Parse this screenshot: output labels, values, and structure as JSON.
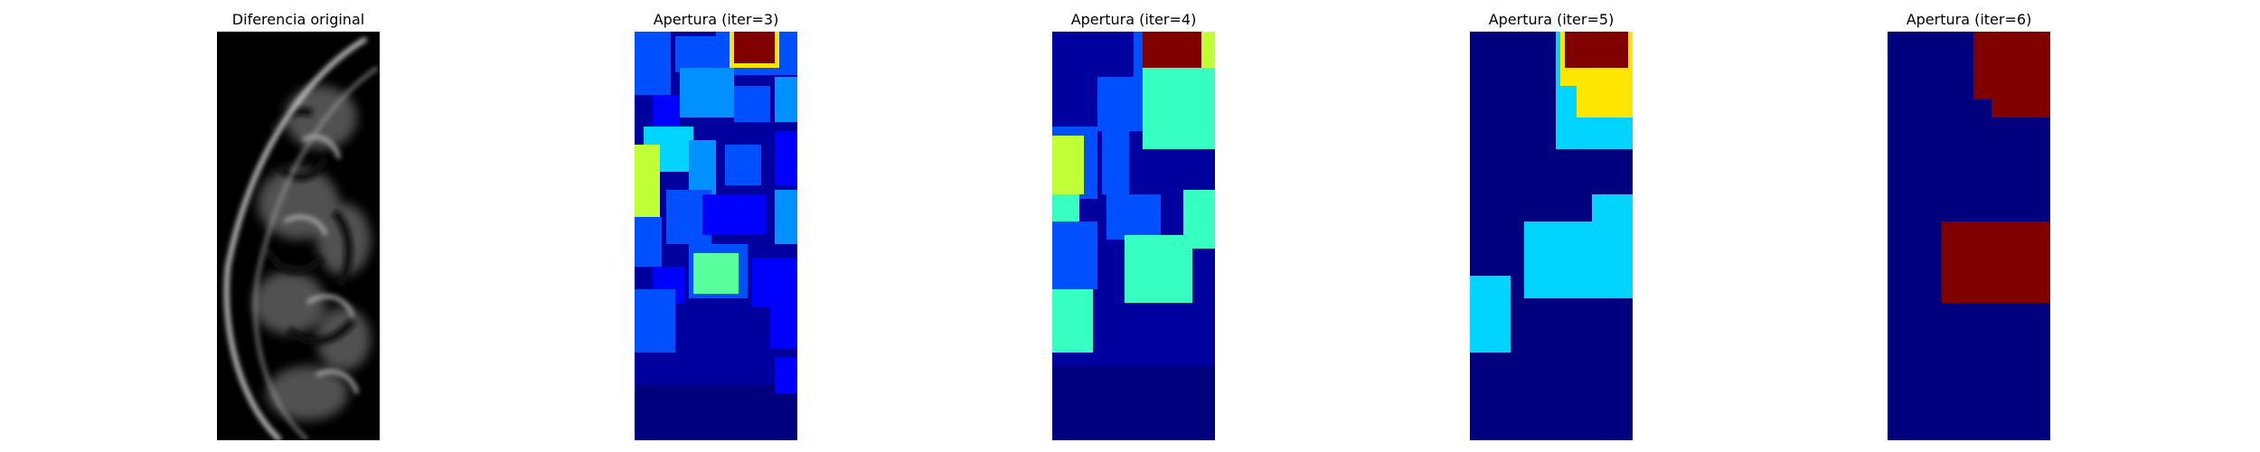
{
  "panels": [
    {
      "title": "Diferencia original",
      "cmap": "gray"
    },
    {
      "title": "Apertura (iter=3)",
      "cmap": "jet"
    },
    {
      "title": "Apertura (iter=4)",
      "cmap": "jet"
    },
    {
      "title": "Apertura (iter=5)",
      "cmap": "jet"
    },
    {
      "title": "Apertura (iter=6)",
      "cmap": "jet"
    }
  ],
  "colors": {
    "dark_navy": "#00007f",
    "navy": "#00009f",
    "blue": "#0000ff",
    "mid_blue": "#0050ff",
    "azure": "#0090ff",
    "cyan": "#00d4ff",
    "aquamarine": "#36ffc1",
    "green_cyan": "#5aff9d",
    "yellow_green": "#c1ff36",
    "yellow": "#ffe600",
    "dark_red": "#800000"
  }
}
